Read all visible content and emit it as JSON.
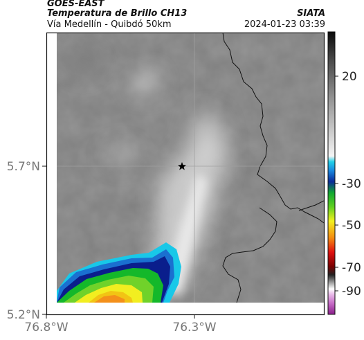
{
  "header": {
    "satellite": "GOES-EAST",
    "product": "Temperatura de Brillo CH13",
    "region": "Vía Medellín - Quibdó 50km",
    "source": "SIATA",
    "datetime": "2024-01-23 03:39"
  },
  "map": {
    "lat_labels": [
      "5.7°N",
      "5.2°N"
    ],
    "lon_labels": [
      "76.8°W",
      "76.3°W"
    ],
    "marker_icon": "star-icon",
    "colors": {
      "cloud_cold": "#f4901a",
      "cloud_yellow": "#f2ee20",
      "cloud_green": "#14b82a",
      "cloud_blue": "#0a1e8c",
      "cloud_cyan": "#18c8e8",
      "background_gray": "#8a8a8a"
    }
  },
  "colorbar": {
    "ticks": [
      "20",
      "-30",
      "-50",
      "-70",
      "-90"
    ]
  }
}
